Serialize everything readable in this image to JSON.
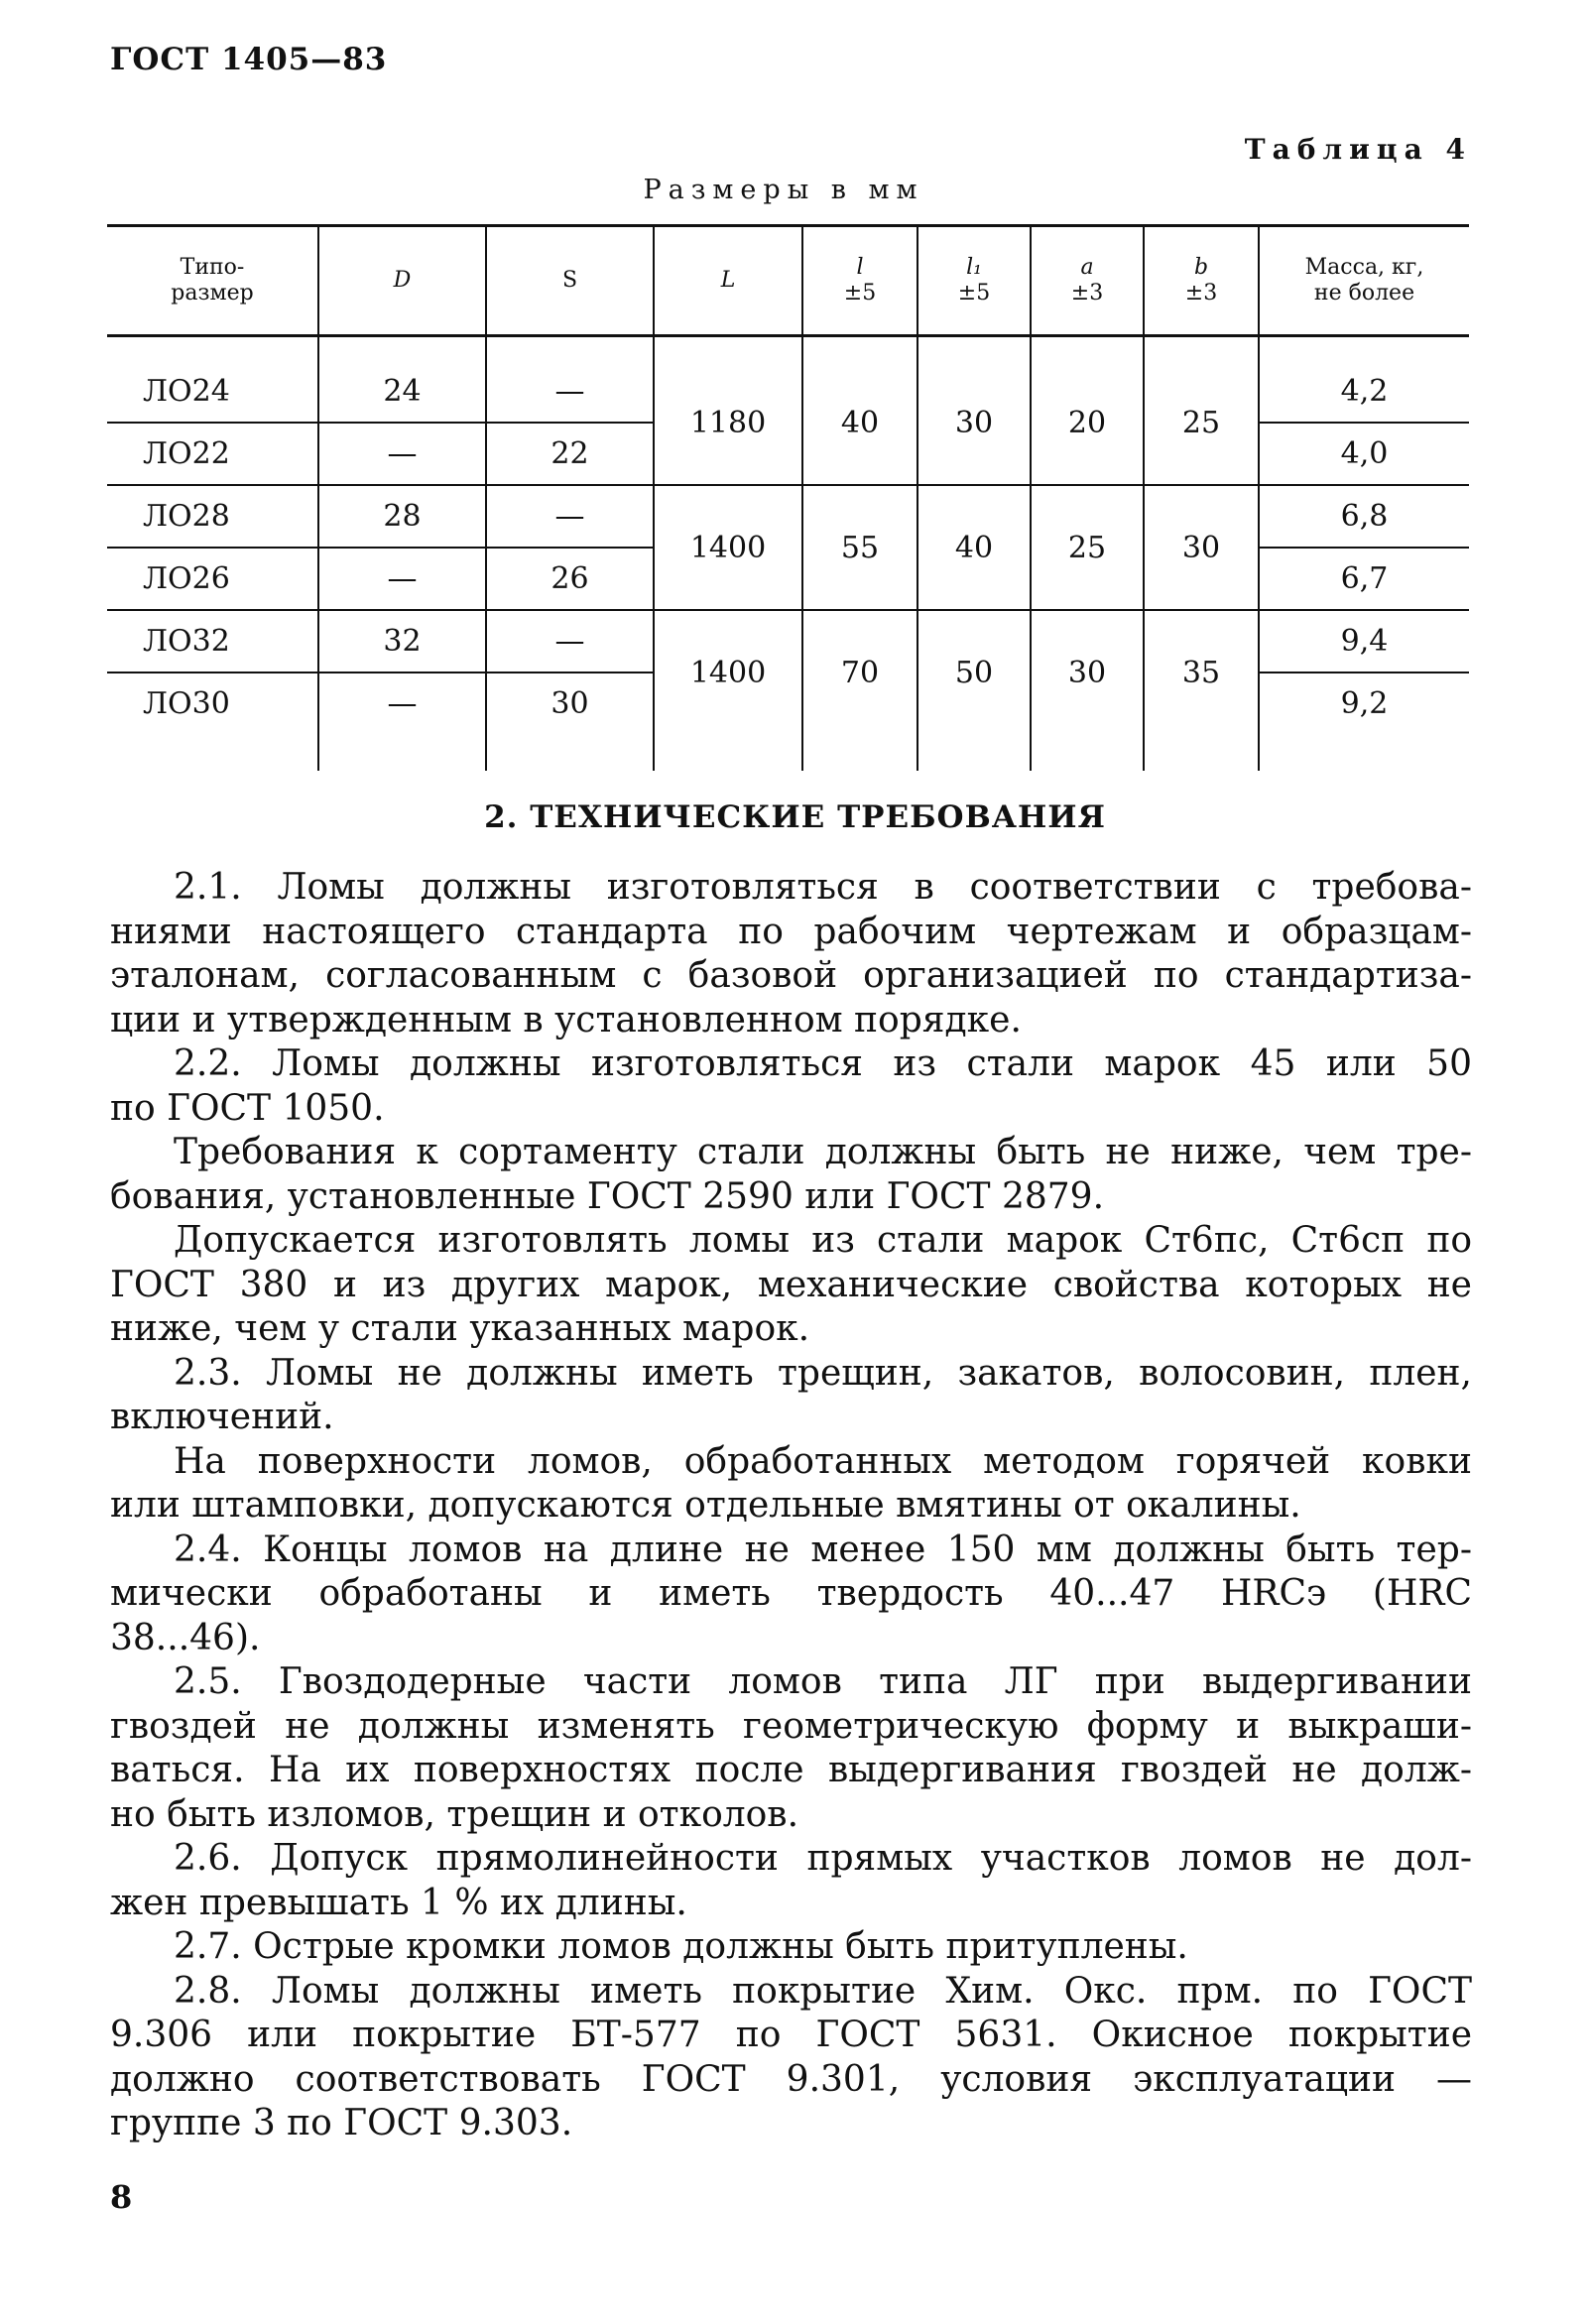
{
  "header": {
    "standard": "ГОСТ 1405—83",
    "table_label": "Таблица 4",
    "units": "Размеры в мм"
  },
  "table": {
    "columns": [
      "Типо-\nразмер",
      "D",
      "S",
      "L",
      "l\n±5",
      "l₁\n±5",
      "a\n±3",
      "b\n±3",
      "Масса, кг,\nне более"
    ],
    "col_main": [
      "Типо-",
      "D",
      "S",
      "L",
      "l",
      "l₁",
      "a",
      "b",
      "Масса, кг,"
    ],
    "col_sub": [
      "размер",
      "",
      "",
      "",
      "±5",
      "±5",
      "±3",
      "±3",
      "не более"
    ],
    "rows": [
      {
        "type": "ЛО24",
        "D": "24",
        "S": "—",
        "mass": "4,2"
      },
      {
        "type": "ЛО22",
        "D": "—",
        "S": "22",
        "mass": "4,0"
      },
      {
        "type": "ЛО28",
        "D": "28",
        "S": "—",
        "mass": "6,8"
      },
      {
        "type": "ЛО26",
        "D": "—",
        "S": "26",
        "mass": "6,7"
      },
      {
        "type": "ЛО32",
        "D": "32",
        "S": "—",
        "mass": "9,4"
      },
      {
        "type": "ЛО30",
        "D": "—",
        "S": "30",
        "mass": "9,2"
      }
    ],
    "groups": [
      {
        "L": "1180",
        "l": "40",
        "l1": "30",
        "a": "20",
        "b": "25"
      },
      {
        "L": "1400",
        "l": "55",
        "l1": "40",
        "a": "25",
        "b": "30"
      },
      {
        "L": "1400",
        "l": "70",
        "l1": "50",
        "a": "30",
        "b": "35"
      }
    ]
  },
  "section": {
    "heading": "2. ТЕХНИЧЕСКИЕ ТРЕБОВАНИЯ"
  },
  "body": {
    "paragraphs": [
      {
        "lines": [
          "2.1. Ломы должны изготовляться в соответствии с требова-",
          "ниями настоящего стандарта по рабочим чертежам и образцам-",
          "эталонам, согласованным с базовой организацией по стандартиза-",
          "ции и утвержденным в установленном порядке."
        ]
      },
      {
        "lines": [
          "2.2. Ломы должны изготовляться из стали марок 45 или 50",
          "по ГОСТ 1050."
        ]
      },
      {
        "lines": [
          "Требования к сортаменту стали должны быть не ниже, чем тре-",
          "бования, установленные ГОСТ 2590 или ГОСТ 2879."
        ]
      },
      {
        "lines": [
          "Допускается изготовлять ломы из стали марок Ст6пс, Ст6сп по",
          "ГОСТ 380 и из других марок, механические свойства которых не",
          "ниже, чем у стали указанных марок."
        ]
      },
      {
        "lines": [
          "2.3. Ломы не должны иметь трещин, закатов, волосовин, плен,",
          "включений."
        ]
      },
      {
        "lines": [
          "На поверхности ломов, обработанных методом горячей ковки",
          "или штамповки, допускаются отдельные вмятины от окалины."
        ]
      },
      {
        "lines": [
          "2.4. Концы ломов на длине не менее 150 мм должны быть тер-",
          "мически обработаны и иметь твердость 40...47 HRCэ (HRC",
          "38...46)."
        ]
      },
      {
        "lines": [
          "2.5. Гвоздодерные части ломов типа ЛГ при выдергивании",
          "гвоздей не должны изменять геометрическую форму и выкраши-",
          "ваться. На их поверхностях после выдергивания гвоздей не долж-",
          "но быть изломов, трещин и отколов."
        ]
      },
      {
        "lines": [
          "2.6. Допуск прямолинейности прямых участков ломов не дол-",
          "жен превышать 1 % их длины."
        ]
      },
      {
        "lines": [
          "2.7. Острые кромки ломов должны быть притуплены."
        ]
      },
      {
        "lines": [
          "2.8. Ломы должны иметь покрытие Хим. Окс. прм. по ГОСТ",
          "9.306 или покрытие БТ-577 по ГОСТ 5631. Окисное покрытие",
          "должно соответствовать ГОСТ 9.301, условия эксплуатации —",
          "группе 3 по ГОСТ 9.303."
        ]
      }
    ]
  },
  "footer": {
    "page_number": "8"
  }
}
